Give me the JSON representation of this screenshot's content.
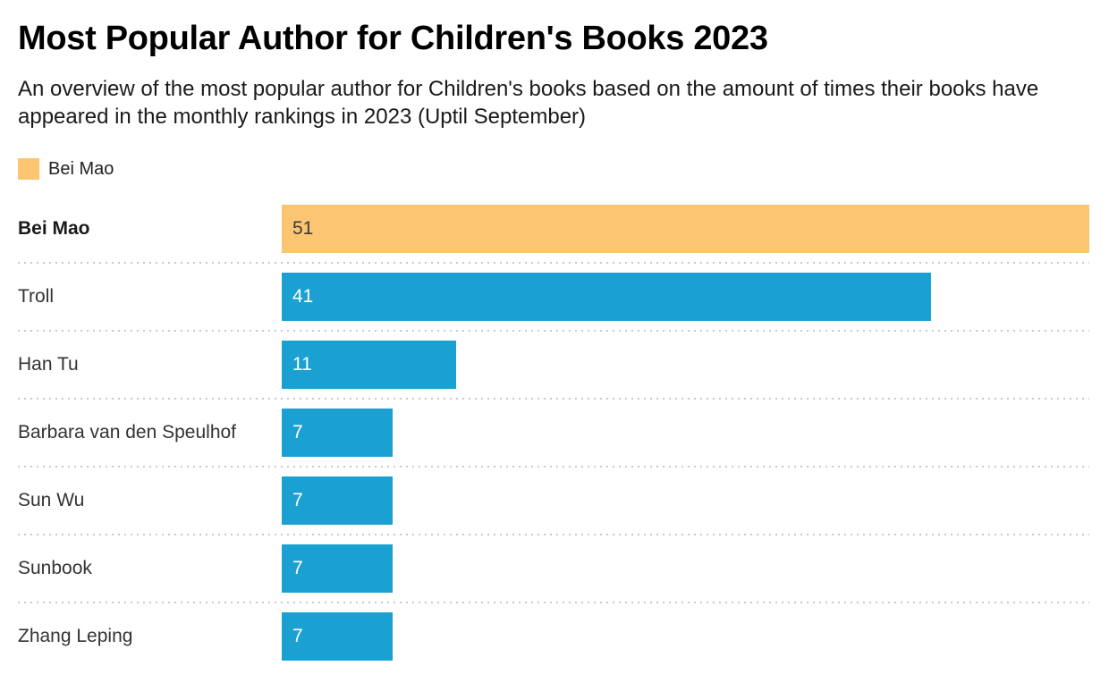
{
  "header": {
    "title": "Most Popular Author for Children's Books 2023",
    "subtitle": "An overview of the most popular author for Children's books based on the amount of times their books have appeared in the monthly rankings in 2023 (Uptil September)"
  },
  "legend": {
    "items": [
      {
        "label": "Bei Mao",
        "color": "#FCC572"
      }
    ]
  },
  "chart_data": {
    "type": "bar",
    "orientation": "horizontal",
    "title": "Most Popular Author for Children's Books 2023",
    "subtitle": "An overview of the most popular author for Children's books based on the amount of times their books have appeared in the monthly rankings in 2023 (Uptil September)",
    "categories": [
      "Bei Mao",
      "Troll",
      "Han Tu",
      "Barbara van den Speulhof",
      "Sun Wu",
      "Sunbook",
      "Zhang Leping"
    ],
    "values": [
      51,
      41,
      11,
      7,
      7,
      7,
      7
    ],
    "highlighted_category": "Bei Mao",
    "xlim": [
      0,
      51
    ],
    "grid": false,
    "axis_labels_visible": false,
    "value_label_position": "inside-start",
    "legend_position": "top-left",
    "bar_colors": {
      "highlight": "#FCC572",
      "default": "#1BA0D2"
    },
    "value_label_colors": {
      "on_highlight": "#3a3a3a",
      "on_default": "#ffffff"
    },
    "separator_color": "#c9c9c9"
  }
}
